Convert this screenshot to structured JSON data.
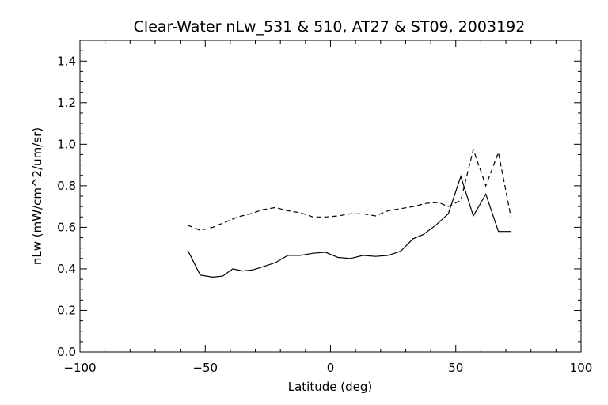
{
  "chart_data": {
    "type": "line",
    "title": "Clear-Water nLw_531 & 510, AT27 & ST09, 2003192",
    "xlabel": "Latitude (deg)",
    "ylabel": "nLw (mW/cm^2/um/sr)",
    "xlim": [
      -100,
      100
    ],
    "ylim": [
      0,
      1.5
    ],
    "x_ticks": [
      "−100",
      "−50",
      "0",
      "50",
      "100"
    ],
    "y_ticks": [
      "0.0",
      "0.2",
      "0.4",
      "0.6",
      "0.8",
      "1.0",
      "1.2",
      "1.4"
    ],
    "grid": false,
    "series": [
      {
        "style": "solid",
        "x": [
          -57,
          -52,
          -47,
          -43,
          -39,
          -35,
          -31,
          -27,
          -22,
          -17,
          -12,
          -7,
          -2,
          3,
          8,
          13,
          18,
          23,
          28,
          33,
          37,
          42,
          47,
          52,
          57,
          62,
          67,
          72
        ],
        "y": [
          0.49,
          0.37,
          0.36,
          0.365,
          0.4,
          0.39,
          0.395,
          0.41,
          0.43,
          0.465,
          0.465,
          0.475,
          0.48,
          0.455,
          0.45,
          0.465,
          0.46,
          0.465,
          0.485,
          0.545,
          0.565,
          0.61,
          0.665,
          0.845,
          0.655,
          0.76,
          0.58,
          0.58
        ]
      },
      {
        "style": "dashed",
        "x": [
          -57,
          -52,
          -47,
          -42,
          -37,
          -32,
          -27,
          -22,
          -17,
          -12,
          -7,
          -2,
          3,
          8,
          13,
          18,
          23,
          28,
          33,
          38,
          43,
          47,
          52,
          57,
          62,
          67,
          72
        ],
        "y": [
          0.61,
          0.585,
          0.6,
          0.625,
          0.65,
          0.665,
          0.685,
          0.695,
          0.68,
          0.67,
          0.65,
          0.65,
          0.655,
          0.665,
          0.665,
          0.655,
          0.68,
          0.69,
          0.7,
          0.715,
          0.72,
          0.7,
          0.73,
          0.975,
          0.8,
          0.96,
          0.65
        ]
      }
    ]
  }
}
